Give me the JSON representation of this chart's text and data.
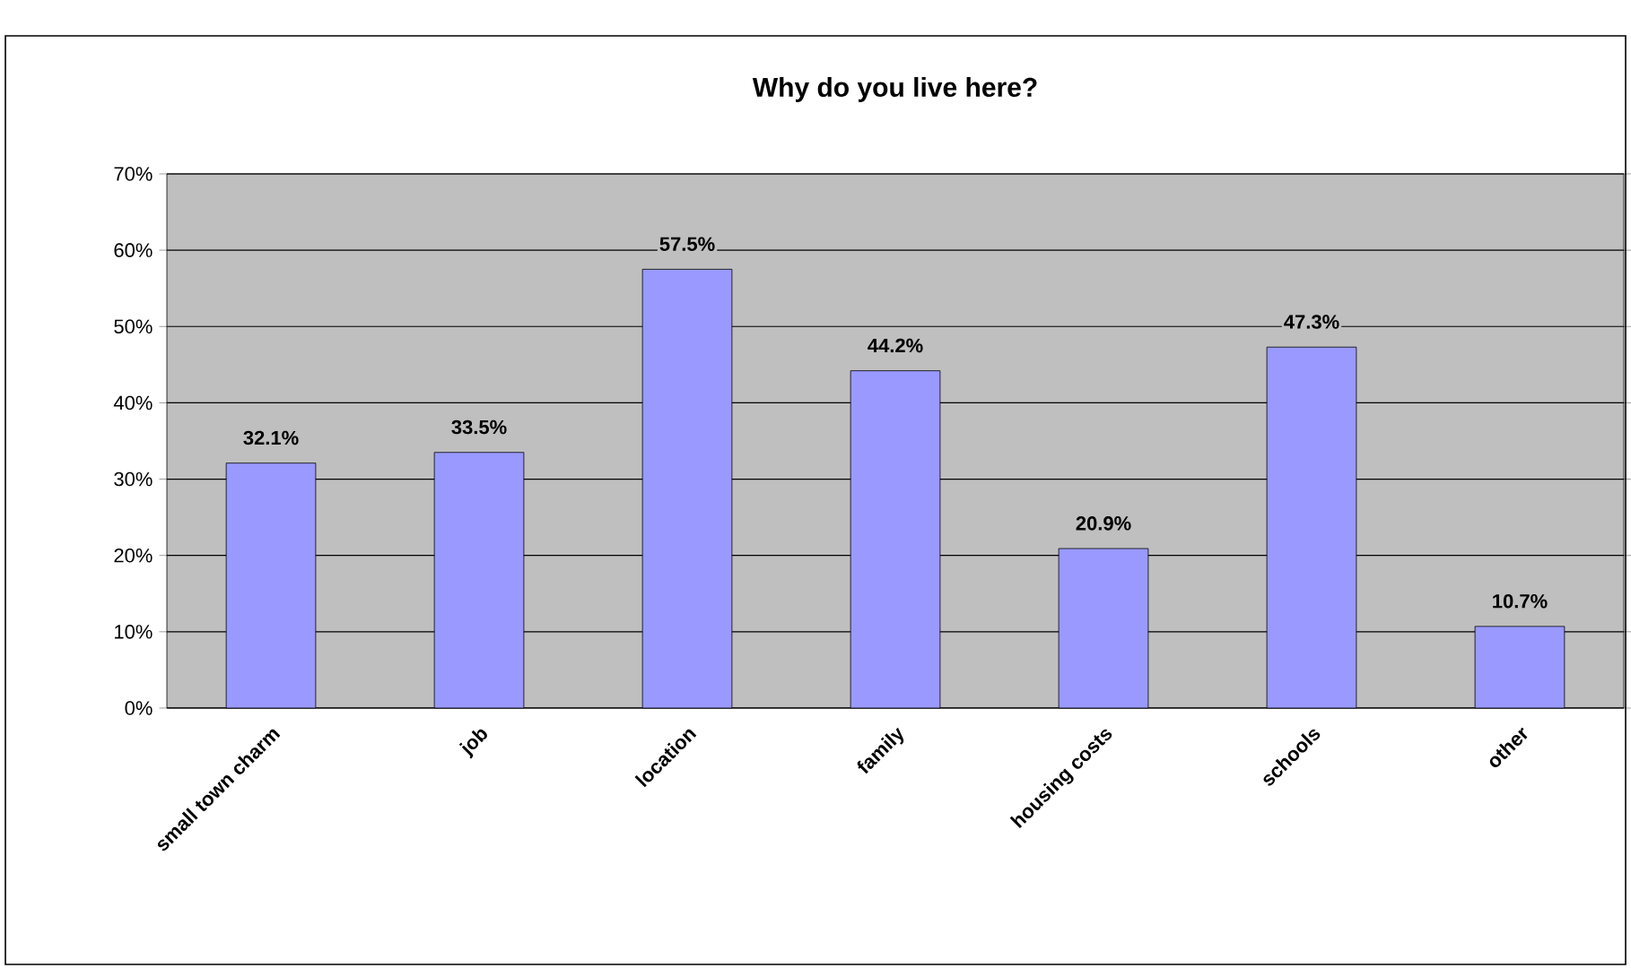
{
  "chart_data": {
    "type": "bar",
    "title": "Why do you live here?",
    "categories": [
      "small town charm",
      "job",
      "location",
      "family",
      "housing costs",
      "schools",
      "other"
    ],
    "values": [
      32.1,
      33.5,
      57.5,
      44.2,
      20.9,
      47.3,
      10.7
    ],
    "value_labels": [
      "32.1%",
      "33.5%",
      "57.5%",
      "44.2%",
      "20.9%",
      "47.3%",
      "10.7%"
    ],
    "color": "#9999ff",
    "ylim": [
      0,
      70
    ],
    "yticks": [
      {
        "value": 0,
        "label": "0%"
      },
      {
        "value": 10,
        "label": "10%"
      },
      {
        "value": 20,
        "label": "20%"
      },
      {
        "value": 30,
        "label": "30%"
      },
      {
        "value": 40,
        "label": "40%"
      },
      {
        "value": 50,
        "label": "50%"
      },
      {
        "value": 60,
        "label": "60%"
      },
      {
        "value": 70,
        "label": "70%"
      }
    ],
    "grid": "y"
  }
}
